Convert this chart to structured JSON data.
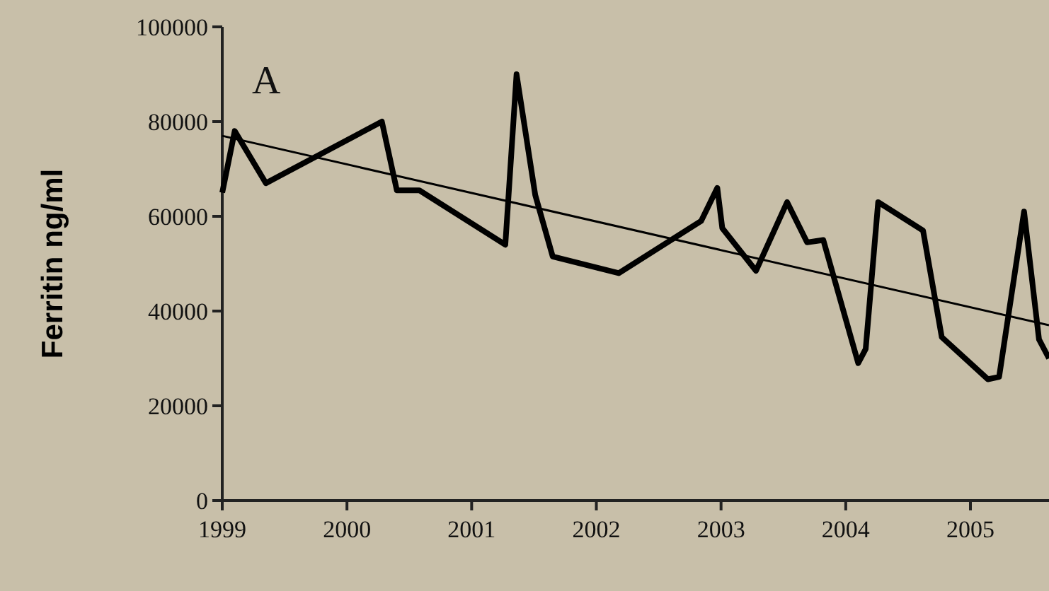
{
  "chart_data": {
    "type": "line",
    "ylabel": "Ferritin ng/ml",
    "annotations": [
      "A"
    ],
    "xlim": [
      1999,
      2005.63
    ],
    "xticks": [
      1999,
      2000,
      2001,
      2002,
      2003,
      2004,
      2005
    ],
    "ylim": [
      0,
      100000
    ],
    "yticks": [
      0,
      20000,
      40000,
      60000,
      80000,
      100000
    ],
    "line_style": "solid",
    "series": [
      {
        "color": "#000000",
        "x": [
          1999.0,
          1999.1,
          1999.35,
          2000.28,
          2000.4,
          2000.58,
          2001.27,
          2001.36,
          2001.51,
          2001.65,
          2002.18,
          2002.84,
          2002.97,
          2003.01,
          2003.28,
          2003.53,
          2003.69,
          2003.82,
          2004.1,
          2004.16,
          2004.26,
          2004.62,
          2004.77,
          2005.14,
          2005.23,
          2005.43,
          2005.55,
          2005.63
        ],
        "values": [
          65000,
          78000,
          67000,
          80000,
          65500,
          65500,
          54000,
          90000,
          64500,
          51500,
          48000,
          59000,
          66000,
          57500,
          48500,
          63000,
          54500,
          55000,
          29000,
          32000,
          63000,
          57000,
          34500,
          25600,
          26100,
          61000,
          34000,
          30000
        ]
      },
      {
        "type": "line",
        "color": "#000000",
        "x": [
          1999.0,
          2005.63
        ],
        "values": [
          77000,
          37000
        ]
      }
    ]
  }
}
